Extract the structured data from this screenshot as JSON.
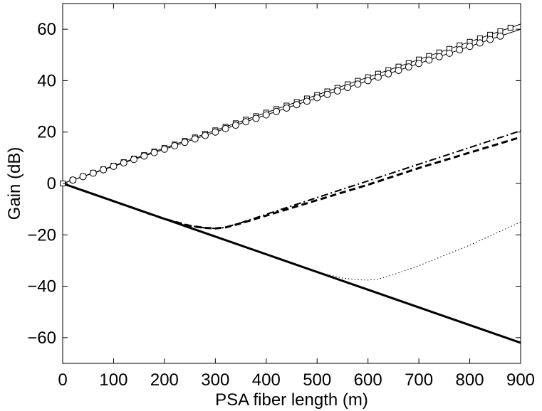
{
  "chart_data": {
    "type": "line",
    "title": "",
    "xlabel": "PSA fiber length (m)",
    "ylabel": "Gain (dB)",
    "xlim": [
      0,
      900
    ],
    "ylim": [
      -70,
      70
    ],
    "xticks": [
      0,
      100,
      200,
      300,
      400,
      500,
      600,
      700,
      800,
      900
    ],
    "yticks": [
      -60,
      -40,
      -20,
      0,
      20,
      40,
      60
    ],
    "xtick_labels": [
      "0",
      "100",
      "200",
      "300",
      "400",
      "500",
      "600",
      "700",
      "800",
      "900"
    ],
    "ytick_labels": [
      "−60",
      "−40",
      "−20",
      "0",
      "20",
      "40",
      "60"
    ],
    "grid": false,
    "legend": "none",
    "series": [
      {
        "style": "thin-solid-squares",
        "x": [
          0,
          900
        ],
        "y": [
          0,
          62
        ]
      },
      {
        "style": "thin-solid-circles",
        "x": [
          0,
          900
        ],
        "y": [
          0,
          60
        ]
      },
      {
        "style": "thick-solid",
        "x": [
          0,
          900
        ],
        "y": [
          0,
          -62
        ]
      },
      {
        "style": "thick-dashed",
        "x": [
          0,
          100,
          200,
          250,
          280,
          300,
          320,
          350,
          400,
          500,
          600,
          700,
          800,
          900
        ],
        "y": [
          0,
          -6.9,
          -13.8,
          -16.5,
          -17.3,
          -17.5,
          -17.1,
          -15.5,
          -12.5,
          -6.5,
          -0.5,
          6,
          12,
          18
        ]
      },
      {
        "style": "dash-dot",
        "x": [
          0,
          100,
          200,
          250,
          280,
          300,
          320,
          350,
          400,
          500,
          600,
          700,
          800,
          900
        ],
        "y": [
          0,
          -6.9,
          -13.8,
          -16.5,
          -17.3,
          -17.5,
          -17.1,
          -15.3,
          -12,
          -5.5,
          1,
          7.5,
          14,
          20.5
        ]
      },
      {
        "style": "dotted",
        "x": [
          0,
          100,
          200,
          300,
          400,
          500,
          550,
          580,
          600,
          620,
          650,
          700,
          750,
          800,
          850,
          900
        ],
        "y": [
          0,
          -6.9,
          -13.8,
          -20.7,
          -27.6,
          -34.5,
          -36.8,
          -37.5,
          -37.6,
          -37.2,
          -35.5,
          -32,
          -28,
          -24,
          -19.5,
          -15
        ]
      }
    ]
  }
}
